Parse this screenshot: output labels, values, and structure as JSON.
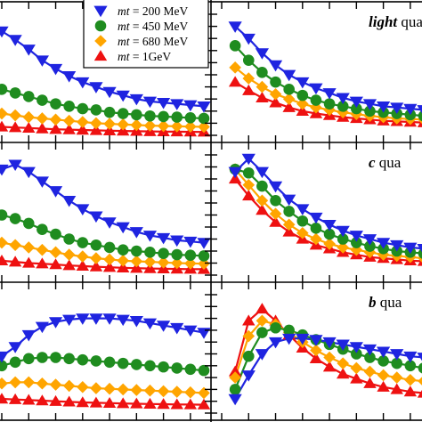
{
  "chart_data": {
    "type": "line",
    "x": [
      0,
      1,
      2,
      3,
      4,
      5,
      6,
      7,
      8,
      9,
      10,
      11,
      12,
      13,
      14,
      15
    ],
    "legend": {
      "placement": "top-center",
      "entries": [
        {
          "key": "mt200",
          "var": "mt",
          "text": " = 200 MeV",
          "marker": "triangle-down",
          "color": "#1f24e0"
        },
        {
          "key": "mt450",
          "var": "mt",
          "text": " = 450 MeV",
          "marker": "circle",
          "color": "#1f8c1f"
        },
        {
          "key": "mt680",
          "var": "mt",
          "text": " = 680 MeV",
          "marker": "diamond",
          "color": "#ffa500"
        },
        {
          "key": "mt1000",
          "var": "mt",
          "text": " = 1GeV",
          "marker": "triangle-up",
          "color": "#ee1111"
        }
      ]
    },
    "panels": [
      {
        "row": 0,
        "col": 0,
        "label_bold": "",
        "label_rest": "",
        "xlim": [
          0,
          15
        ],
        "ylim": [
          0,
          1
        ],
        "series": [
          {
            "key": "mt200",
            "x": [
              0,
              1,
              2,
              3,
              4,
              5,
              6,
              7,
              8,
              9,
              10,
              11,
              12,
              13,
              14,
              15
            ],
            "values": [
              0.86,
              0.79,
              0.71,
              0.62,
              0.55,
              0.49,
              0.44,
              0.4,
              0.36,
              0.33,
              0.3,
              0.28,
              0.27,
              0.26,
              0.25,
              0.24
            ]
          },
          {
            "key": "mt450",
            "x": [
              0,
              1,
              2,
              3,
              4,
              5,
              6,
              7,
              8,
              9,
              10,
              11,
              12,
              13,
              14,
              15
            ],
            "values": [
              0.38,
              0.35,
              0.32,
              0.29,
              0.26,
              0.24,
              0.22,
              0.21,
              0.19,
              0.18,
              0.17,
              0.16,
              0.155,
              0.15,
              0.145,
              0.14
            ]
          },
          {
            "key": "mt680",
            "x": [
              0,
              1,
              2,
              3,
              4,
              5,
              6,
              7,
              8,
              9,
              10,
              11,
              12,
              13,
              14,
              15
            ],
            "values": [
              0.18,
              0.165,
              0.15,
              0.14,
              0.13,
              0.12,
              0.11,
              0.1,
              0.095,
              0.09,
              0.085,
              0.08,
              0.077,
              0.074,
              0.072,
              0.07
            ]
          },
          {
            "key": "mt1000",
            "x": [
              0,
              1,
              2,
              3,
              4,
              5,
              6,
              7,
              8,
              9,
              10,
              11,
              12,
              13,
              14,
              15
            ],
            "values": [
              0.07,
              0.065,
              0.06,
              0.055,
              0.05,
              0.047,
              0.044,
              0.041,
              0.038,
              0.036,
              0.034,
              0.032,
              0.031,
              0.03,
              0.029,
              0.028
            ]
          }
        ]
      },
      {
        "row": 0,
        "col": 1,
        "label_bold": "light",
        "label_rest": " qua",
        "xlim": [
          0,
          15
        ],
        "ylim": [
          0,
          1
        ],
        "series": [
          {
            "key": "mt200",
            "x": [
              1,
              2,
              3,
              4,
              5,
              6,
              7,
              8,
              9,
              10,
              11,
              12,
              13,
              14,
              15
            ],
            "values": [
              0.9,
              0.8,
              0.68,
              0.58,
              0.5,
              0.44,
              0.39,
              0.35,
              0.31,
              0.28,
              0.26,
              0.24,
              0.23,
              0.22,
              0.21
            ]
          },
          {
            "key": "mt450",
            "x": [
              1,
              2,
              3,
              4,
              5,
              6,
              7,
              8,
              9,
              10,
              11,
              12,
              13,
              14,
              15
            ],
            "values": [
              0.74,
              0.62,
              0.52,
              0.44,
              0.38,
              0.33,
              0.29,
              0.26,
              0.24,
              0.22,
              0.2,
              0.19,
              0.18,
              0.17,
              0.16
            ]
          },
          {
            "key": "mt680",
            "x": [
              1,
              2,
              3,
              4,
              5,
              6,
              7,
              8,
              9,
              10,
              11,
              12,
              13,
              14,
              15
            ],
            "values": [
              0.56,
              0.47,
              0.4,
              0.34,
              0.3,
              0.26,
              0.23,
              0.21,
              0.19,
              0.175,
              0.16,
              0.15,
              0.14,
              0.135,
              0.13
            ]
          },
          {
            "key": "mt1000",
            "x": [
              1,
              2,
              3,
              4,
              5,
              6,
              7,
              8,
              9,
              10,
              11,
              12,
              13,
              14,
              15
            ],
            "values": [
              0.44,
              0.37,
              0.31,
              0.27,
              0.23,
              0.2,
              0.18,
              0.165,
              0.15,
              0.14,
              0.13,
              0.12,
              0.115,
              0.11,
              0.105
            ]
          }
        ]
      },
      {
        "row": 1,
        "col": 0,
        "label_bold": "",
        "label_rest": "",
        "xlim": [
          0,
          15
        ],
        "ylim": [
          0,
          1
        ],
        "series": [
          {
            "key": "mt200",
            "x": [
              0,
              1,
              2,
              3,
              4,
              5,
              6,
              7,
              8,
              9,
              10,
              11,
              12,
              13,
              14,
              15
            ],
            "values": [
              0.88,
              0.92,
              0.86,
              0.78,
              0.7,
              0.62,
              0.55,
              0.49,
              0.44,
              0.4,
              0.36,
              0.33,
              0.31,
              0.29,
              0.28,
              0.27
            ]
          },
          {
            "key": "mt450",
            "x": [
              0,
              1,
              2,
              3,
              4,
              5,
              6,
              7,
              8,
              9,
              10,
              11,
              12,
              13,
              14,
              15
            ],
            "values": [
              0.5,
              0.47,
              0.43,
              0.38,
              0.34,
              0.3,
              0.27,
              0.25,
              0.23,
              0.21,
              0.2,
              0.19,
              0.18,
              0.17,
              0.165,
              0.16
            ]
          },
          {
            "key": "mt680",
            "x": [
              0,
              1,
              2,
              3,
              4,
              5,
              6,
              7,
              8,
              9,
              10,
              11,
              12,
              13,
              14,
              15
            ],
            "values": [
              0.27,
              0.25,
              0.23,
              0.21,
              0.19,
              0.17,
              0.155,
              0.14,
              0.13,
              0.12,
              0.115,
              0.11,
              0.105,
              0.1,
              0.097,
              0.095
            ]
          },
          {
            "key": "mt1000",
            "x": [
              0,
              1,
              2,
              3,
              4,
              5,
              6,
              7,
              8,
              9,
              10,
              11,
              12,
              13,
              14,
              15
            ],
            "values": [
              0.12,
              0.11,
              0.1,
              0.095,
              0.088,
              0.08,
              0.075,
              0.07,
              0.065,
              0.061,
              0.058,
              0.055,
              0.053,
              0.051,
              0.05,
              0.049
            ]
          }
        ]
      },
      {
        "row": 1,
        "col": 1,
        "label_bold": "c",
        "label_rest": " qua",
        "xlim": [
          0,
          15
        ],
        "ylim": [
          0,
          1
        ],
        "series": [
          {
            "key": "mt200",
            "x": [
              1,
              2,
              3,
              4,
              5,
              6,
              7,
              8,
              9,
              10,
              11,
              12,
              13,
              14,
              15
            ],
            "values": [
              0.86,
              0.97,
              0.86,
              0.74,
              0.63,
              0.55,
              0.48,
              0.42,
              0.37,
              0.33,
              0.3,
              0.27,
              0.25,
              0.23,
              0.22
            ]
          },
          {
            "key": "mt450",
            "x": [
              1,
              2,
              3,
              4,
              5,
              6,
              7,
              8,
              9,
              10,
              11,
              12,
              13,
              14,
              15
            ],
            "values": [
              0.88,
              0.85,
              0.74,
              0.62,
              0.53,
              0.45,
              0.39,
              0.34,
              0.3,
              0.27,
              0.24,
              0.22,
              0.2,
              0.19,
              0.18
            ]
          },
          {
            "key": "mt680",
            "x": [
              1,
              2,
              3,
              4,
              5,
              6,
              7,
              8,
              9,
              10,
              11,
              12,
              13,
              14,
              15
            ],
            "values": [
              0.88,
              0.75,
              0.62,
              0.51,
              0.42,
              0.35,
              0.3,
              0.26,
              0.23,
              0.21,
              0.19,
              0.17,
              0.16,
              0.15,
              0.14
            ]
          },
          {
            "key": "mt1000",
            "x": [
              1,
              2,
              3,
              4,
              5,
              6,
              7,
              8,
              9,
              10,
              11,
              12,
              13,
              14,
              15
            ],
            "values": [
              0.8,
              0.66,
              0.54,
              0.44,
              0.36,
              0.3,
              0.25,
              0.22,
              0.19,
              0.17,
              0.15,
              0.14,
              0.13,
              0.12,
              0.115
            ]
          }
        ]
      },
      {
        "row": 2,
        "col": 0,
        "label_bold": "",
        "label_rest": "",
        "xlim": [
          0,
          15
        ],
        "ylim": [
          0,
          1
        ],
        "series": [
          {
            "key": "mt200",
            "x": [
              0,
              1,
              2,
              3,
              4,
              5,
              6,
              7,
              8,
              9,
              10,
              11,
              12,
              13,
              14,
              15
            ],
            "values": [
              0.48,
              0.56,
              0.66,
              0.73,
              0.77,
              0.79,
              0.8,
              0.8,
              0.8,
              0.79,
              0.78,
              0.76,
              0.74,
              0.72,
              0.7,
              0.68
            ]
          },
          {
            "key": "mt450",
            "x": [
              0,
              1,
              2,
              3,
              4,
              5,
              6,
              7,
              8,
              9,
              10,
              11,
              12,
              13,
              14,
              15
            ],
            "values": [
              0.4,
              0.43,
              0.46,
              0.47,
              0.47,
              0.46,
              0.45,
              0.44,
              0.43,
              0.42,
              0.41,
              0.4,
              0.39,
              0.38,
              0.37,
              0.36
            ]
          },
          {
            "key": "mt680",
            "x": [
              0,
              1,
              2,
              3,
              4,
              5,
              6,
              7,
              8,
              9,
              10,
              11,
              12,
              13,
              14,
              15
            ],
            "values": [
              0.25,
              0.26,
              0.26,
              0.25,
              0.24,
              0.23,
              0.22,
              0.21,
              0.205,
              0.2,
              0.195,
              0.19,
              0.185,
              0.18,
              0.175,
              0.17
            ]
          },
          {
            "key": "mt1000",
            "x": [
              0,
              1,
              2,
              3,
              4,
              5,
              6,
              7,
              8,
              9,
              10,
              11,
              12,
              13,
              14,
              15
            ],
            "values": [
              0.12,
              0.115,
              0.11,
              0.105,
              0.1,
              0.095,
              0.09,
              0.087,
              0.084,
              0.081,
              0.079,
              0.077,
              0.075,
              0.073,
              0.072,
              0.071
            ]
          }
        ]
      },
      {
        "row": 2,
        "col": 1,
        "label_bold": "b",
        "label_rest": " qua",
        "xlim": [
          0,
          15
        ],
        "ylim": [
          0,
          1
        ],
        "series": [
          {
            "key": "mt200",
            "x": [
              1,
              2,
              3,
              4,
              5,
              6,
              7,
              8,
              9,
              10,
              11,
              12,
              13,
              14,
              15
            ],
            "values": [
              0.12,
              0.32,
              0.5,
              0.6,
              0.63,
              0.63,
              0.62,
              0.6,
              0.58,
              0.56,
              0.54,
              0.52,
              0.5,
              0.48,
              0.47
            ]
          },
          {
            "key": "mt450",
            "x": [
              1,
              2,
              3,
              4,
              5,
              6,
              7,
              8,
              9,
              10,
              11,
              12,
              13,
              14,
              15
            ],
            "values": [
              0.2,
              0.48,
              0.68,
              0.72,
              0.7,
              0.66,
              0.62,
              0.58,
              0.54,
              0.5,
              0.47,
              0.44,
              0.42,
              0.4,
              0.38
            ]
          },
          {
            "key": "mt680",
            "x": [
              1,
              2,
              3,
              4,
              5,
              6,
              7,
              8,
              9,
              10,
              11,
              12,
              13,
              14,
              15
            ],
            "values": [
              0.3,
              0.65,
              0.78,
              0.75,
              0.68,
              0.6,
              0.53,
              0.47,
              0.42,
              0.38,
              0.35,
              0.32,
              0.3,
              0.28,
              0.27
            ]
          },
          {
            "key": "mt1000",
            "x": [
              1,
              2,
              3,
              4,
              5,
              6,
              7,
              8,
              9,
              10,
              11,
              12,
              13,
              14,
              15
            ],
            "values": [
              0.35,
              0.78,
              0.88,
              0.78,
              0.66,
              0.55,
              0.46,
              0.39,
              0.33,
              0.29,
              0.25,
              0.22,
              0.2,
              0.18,
              0.17
            ]
          }
        ]
      }
    ]
  }
}
